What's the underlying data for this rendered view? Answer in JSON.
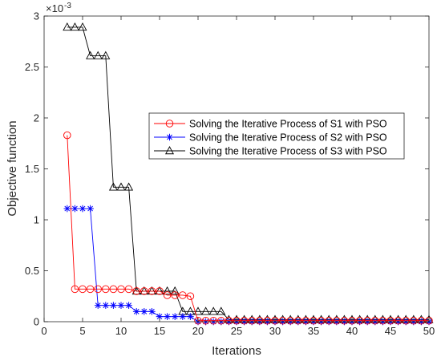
{
  "chart_data": {
    "type": "line",
    "xlabel": "Iterations",
    "ylabel": "Objective function",
    "multiplier_base": "×10",
    "multiplier_exponent": "-3",
    "xlim": [
      0,
      50
    ],
    "ylim": [
      0,
      3
    ],
    "xticks": [
      0,
      5,
      10,
      15,
      20,
      25,
      30,
      35,
      40,
      45,
      50
    ],
    "yticks": [
      0,
      0.5,
      1,
      1.5,
      2,
      2.5,
      3
    ],
    "x_tick_labels": [
      "0",
      "5",
      "10",
      "15",
      "20",
      "25",
      "30",
      "35",
      "40",
      "45",
      "50"
    ],
    "y_tick_labels": [
      "0",
      "0.5",
      "1",
      "1.5",
      "2",
      "2.5",
      "3"
    ],
    "grid": false,
    "legend_position": "right-middle",
    "series": [
      {
        "name": "Solving the Iterative Process of S1 with PSO",
        "color": "#ff0000",
        "marker": "circle",
        "x": [
          3,
          4,
          5,
          6,
          7,
          8,
          9,
          10,
          11,
          12,
          13,
          14,
          15,
          16,
          17,
          18,
          19,
          20,
          21,
          22,
          23,
          24,
          25,
          26,
          27,
          28,
          29,
          30,
          31,
          32,
          33,
          34,
          35,
          36,
          37,
          38,
          39,
          40,
          41,
          42,
          43,
          44,
          45,
          46,
          47,
          48,
          49,
          50
        ],
        "y": [
          1.83,
          0.32,
          0.32,
          0.32,
          0.32,
          0.32,
          0.32,
          0.32,
          0.32,
          0.3,
          0.3,
          0.3,
          0.3,
          0.26,
          0.26,
          0.26,
          0.25,
          0.01,
          0.01,
          0.01,
          0.01,
          0.01,
          0.01,
          0.01,
          0.01,
          0.01,
          0.01,
          0.01,
          0.01,
          0.01,
          0.01,
          0.01,
          0.01,
          0.01,
          0.01,
          0.01,
          0.01,
          0.01,
          0.01,
          0.01,
          0.01,
          0.01,
          0.01,
          0.01,
          0.01,
          0.01,
          0.01,
          0.01
        ]
      },
      {
        "name": "Solving the Iterative Process of S2 with PSO",
        "color": "#0000ff",
        "marker": "asterisk",
        "x": [
          3,
          4,
          5,
          6,
          7,
          8,
          9,
          10,
          11,
          12,
          13,
          14,
          15,
          16,
          17,
          18,
          19,
          20,
          21,
          22,
          23,
          24,
          25,
          26,
          27,
          28,
          29,
          30,
          31,
          32,
          33,
          34,
          35,
          36,
          37,
          38,
          39,
          40,
          41,
          42,
          43,
          44,
          45,
          46,
          47,
          48,
          49,
          50
        ],
        "y": [
          1.11,
          1.11,
          1.11,
          1.11,
          0.16,
          0.16,
          0.16,
          0.16,
          0.16,
          0.1,
          0.1,
          0.1,
          0.05,
          0.05,
          0.05,
          0.05,
          0.05,
          0.0,
          0.0,
          0.0,
          0.0,
          0.0,
          0.0,
          0.0,
          0.0,
          0.0,
          0.0,
          0.0,
          0.0,
          0.0,
          0.0,
          0.0,
          0.0,
          0.0,
          0.0,
          0.0,
          0.0,
          0.0,
          0.0,
          0.0,
          0.0,
          0.0,
          0.0,
          0.0,
          0.0,
          0.0,
          0.0,
          0.0
        ]
      },
      {
        "name": "Solving the Iterative Process of S3 with PSO",
        "color": "#000000",
        "marker": "triangle",
        "x": [
          3,
          4,
          5,
          6,
          7,
          8,
          9,
          10,
          11,
          12,
          13,
          14,
          15,
          16,
          17,
          18,
          19,
          20,
          21,
          22,
          23,
          24,
          25,
          26,
          27,
          28,
          29,
          30,
          31,
          32,
          33,
          34,
          35,
          36,
          37,
          38,
          39,
          40,
          41,
          42,
          43,
          44,
          45,
          46,
          47,
          48,
          49,
          50
        ],
        "y": [
          2.89,
          2.89,
          2.89,
          2.61,
          2.61,
          2.61,
          1.32,
          1.32,
          1.32,
          0.3,
          0.3,
          0.3,
          0.3,
          0.3,
          0.3,
          0.1,
          0.1,
          0.1,
          0.1,
          0.1,
          0.1,
          0.02,
          0.02,
          0.02,
          0.02,
          0.02,
          0.02,
          0.02,
          0.02,
          0.02,
          0.02,
          0.02,
          0.02,
          0.02,
          0.02,
          0.02,
          0.02,
          0.02,
          0.02,
          0.02,
          0.02,
          0.02,
          0.02,
          0.02,
          0.02,
          0.02,
          0.02,
          0.02
        ]
      }
    ]
  }
}
